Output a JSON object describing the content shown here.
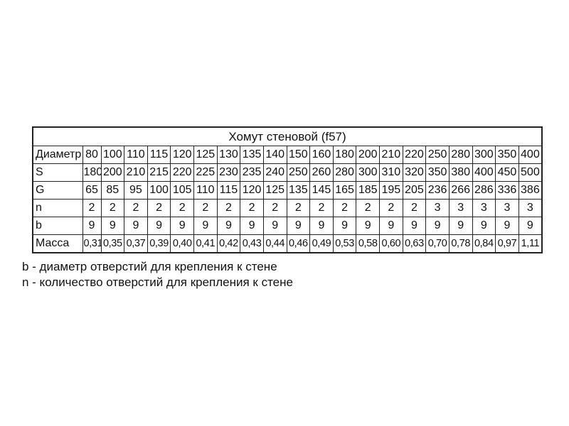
{
  "chart_data": {
    "type": "table",
    "title": "Хомут стеновой (f57)",
    "rows": [
      {
        "label": "Диаметр",
        "values": [
          "80",
          "100",
          "110",
          "115",
          "120",
          "125",
          "130",
          "135",
          "140",
          "150",
          "160",
          "180",
          "200",
          "210",
          "220",
          "250",
          "280",
          "300",
          "350",
          "400"
        ]
      },
      {
        "label": "S",
        "values": [
          "180",
          "200",
          "210",
          "215",
          "220",
          "225",
          "230",
          "235",
          "240",
          "250",
          "260",
          "280",
          "300",
          "310",
          "320",
          "350",
          "380",
          "400",
          "450",
          "500"
        ]
      },
      {
        "label": "G",
        "values": [
          "65",
          "85",
          "95",
          "100",
          "105",
          "110",
          "115",
          "120",
          "125",
          "135",
          "145",
          "165",
          "185",
          "195",
          "205",
          "236",
          "266",
          "286",
          "336",
          "386"
        ]
      },
      {
        "label": "n",
        "values": [
          "2",
          "2",
          "2",
          "2",
          "2",
          "2",
          "2",
          "2",
          "2",
          "2",
          "2",
          "2",
          "2",
          "2",
          "2",
          "3",
          "3",
          "3",
          "3",
          "3"
        ]
      },
      {
        "label": "b",
        "values": [
          "9",
          "9",
          "9",
          "9",
          "9",
          "9",
          "9",
          "9",
          "9",
          "9",
          "9",
          "9",
          "9",
          "9",
          "9",
          "9",
          "9",
          "9",
          "9",
          "9"
        ]
      },
      {
        "label": "Масса",
        "values": [
          "0,31",
          "0,35",
          "0,37",
          "0,39",
          "0,40",
          "0,41",
          "0,42",
          "0,43",
          "0,44",
          "0,46",
          "0,49",
          "0,53",
          "0,58",
          "0,60",
          "0,63",
          "0,70",
          "0,78",
          "0,84",
          "0,97",
          "1,11"
        ]
      }
    ]
  },
  "footnotes": [
    "b - диаметр отверстий для крепления к стене",
    "n - количество отверстий для крепления к стене"
  ]
}
